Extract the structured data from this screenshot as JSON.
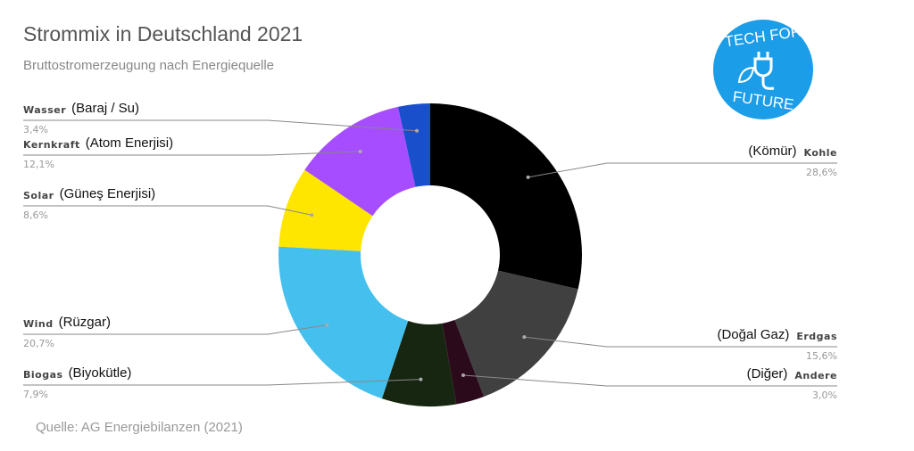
{
  "chart_data": {
    "type": "donut",
    "title": "Strommix in Deutschland 2021",
    "subtitle": "Bruttostromerzeugung nach Energiequelle",
    "source": "Quelle: AG Energiebilanzen (2021)",
    "categories": [
      "Kohle",
      "Erdgas",
      "Andere",
      "Biogas",
      "Wind",
      "Solar",
      "Kernkraft",
      "Wasser"
    ],
    "translations": [
      "(Kömür)",
      "(Doğal Gaz)",
      "(Diğer)",
      "(Biyokütle)",
      "(Rüzgar)",
      "(Güneş Enerjisi)",
      "(Atom Enerjisi)",
      "(Baraj / Su)"
    ],
    "values": [
      28.6,
      15.6,
      3.0,
      7.9,
      20.7,
      8.6,
      12.1,
      3.4
    ],
    "value_labels": [
      "28,6%",
      "15,6%",
      "3,0%",
      "7,9%",
      "20,7%",
      "8,6%",
      "12,1%",
      "3,4%"
    ],
    "colors": [
      "#000000",
      "#404040",
      "#2b0a1c",
      "#172610",
      "#45c0ee",
      "#ffe600",
      "#a64dff",
      "#1a4fcc"
    ]
  },
  "logo": {
    "line1": "TECH FOR",
    "line2": "FUTURE"
  }
}
